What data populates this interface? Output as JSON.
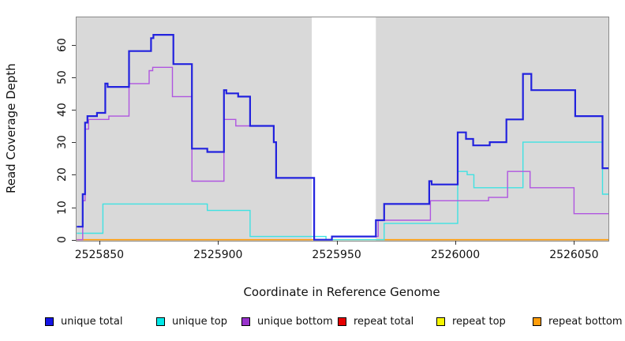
{
  "chart_data": {
    "type": "line",
    "subtype": "step-after-coverage-plot",
    "title": "",
    "xlabel": "Coordinate in Reference Genome",
    "ylabel": "Read Coverage Depth",
    "xlim": [
      2525840.4,
      2526064.5
    ],
    "ylim": [
      0,
      68.4
    ],
    "x_ticks": [
      2525850,
      2525900,
      2525950,
      2526000,
      2526050
    ],
    "y_ticks": [
      0,
      10,
      20,
      30,
      40,
      50,
      60
    ],
    "grid": false,
    "plot_background": "#d9d9d9",
    "highlight_region": {
      "name": "uncovered-white-band",
      "x_start": 2525939.5,
      "x_end": 2525966.5,
      "color": "#ffffff"
    },
    "legend_position": "bottom",
    "series": [
      {
        "name": "repeat total",
        "color": "#de2222",
        "width": 1.3,
        "points": [
          [
            2525840.5,
            0
          ]
        ]
      },
      {
        "name": "repeat top",
        "color": "#f0f000",
        "width": 1.3,
        "points": [
          [
            2525840.5,
            0
          ]
        ]
      },
      {
        "name": "repeat bottom",
        "color": "#ff9d0a",
        "width": 1.6,
        "points": [
          [
            2525840.5,
            0
          ]
        ]
      },
      {
        "name": "unique top",
        "color": "#3fe2e2",
        "width": 1.4,
        "points": [
          [
            2525840.5,
            2
          ],
          [
            2525851.5,
            11
          ],
          [
            2525895.5,
            9
          ],
          [
            2525913.5,
            1
          ],
          [
            2525945.5,
            0
          ],
          [
            2525970,
            5
          ],
          [
            2526001,
            21
          ],
          [
            2526005,
            20
          ],
          [
            2526007.8,
            16
          ],
          [
            2526028.5,
            30
          ],
          [
            2526062,
            14
          ]
        ]
      },
      {
        "name": "unique bottom",
        "color": "#b055e0",
        "width": 1.4,
        "points": [
          [
            2525840.5,
            0
          ],
          [
            2525843,
            12
          ],
          [
            2525844,
            34
          ],
          [
            2525845.5,
            37
          ],
          [
            2525854,
            38
          ],
          [
            2525862.5,
            48
          ],
          [
            2525871,
            52
          ],
          [
            2525872.5,
            53
          ],
          [
            2525880.8,
            44
          ],
          [
            2525889,
            18
          ],
          [
            2525902.5,
            37
          ],
          [
            2525907.5,
            35
          ],
          [
            2525923.5,
            30
          ],
          [
            2525924.5,
            19
          ],
          [
            2525940.5,
            0
          ],
          [
            2525948,
            1
          ],
          [
            2525967.5,
            6
          ],
          [
            2525989.5,
            12
          ],
          [
            2526014,
            13
          ],
          [
            2526022,
            21
          ],
          [
            2526031.5,
            16
          ],
          [
            2526050,
            8
          ]
        ]
      },
      {
        "name": "unique total",
        "color": "#2222de",
        "width": 2.2,
        "points": [
          [
            2525840.5,
            4
          ],
          [
            2525843,
            14
          ],
          [
            2525844,
            36
          ],
          [
            2525845,
            38
          ],
          [
            2525849,
            39
          ],
          [
            2525852.5,
            48
          ],
          [
            2525853.5,
            47
          ],
          [
            2525862.5,
            58
          ],
          [
            2525871.8,
            62
          ],
          [
            2525872.8,
            63
          ],
          [
            2525881.2,
            54
          ],
          [
            2525889,
            28
          ],
          [
            2525895.5,
            27
          ],
          [
            2525902.5,
            46
          ],
          [
            2525903.5,
            45
          ],
          [
            2525908.5,
            44
          ],
          [
            2525913.5,
            35
          ],
          [
            2525923.5,
            30
          ],
          [
            2525924.5,
            19
          ],
          [
            2525940.5,
            0
          ],
          [
            2525948,
            1
          ],
          [
            2525966.5,
            6
          ],
          [
            2525970,
            11
          ],
          [
            2525989,
            18
          ],
          [
            2525990,
            17
          ],
          [
            2526001,
            33
          ],
          [
            2526004.5,
            31
          ],
          [
            2526007.5,
            29
          ],
          [
            2526014.5,
            30
          ],
          [
            2526021.5,
            37
          ],
          [
            2526028.5,
            51
          ],
          [
            2526032,
            46
          ],
          [
            2526050.5,
            38
          ],
          [
            2526062,
            22
          ]
        ]
      }
    ],
    "legend": [
      {
        "label": "unique total",
        "color": "#1414e6"
      },
      {
        "label": "unique top",
        "color": "#00e8e8"
      },
      {
        "label": "unique bottom",
        "color": "#9932cc"
      },
      {
        "label": "repeat total",
        "color": "#e60000"
      },
      {
        "label": "repeat top",
        "color": "#f5f500"
      },
      {
        "label": "repeat bottom",
        "color": "#ff9d0a"
      }
    ]
  },
  "labels": {
    "xlabel": "Coordinate in Reference Genome",
    "ylabel": "Read Coverage Depth"
  }
}
